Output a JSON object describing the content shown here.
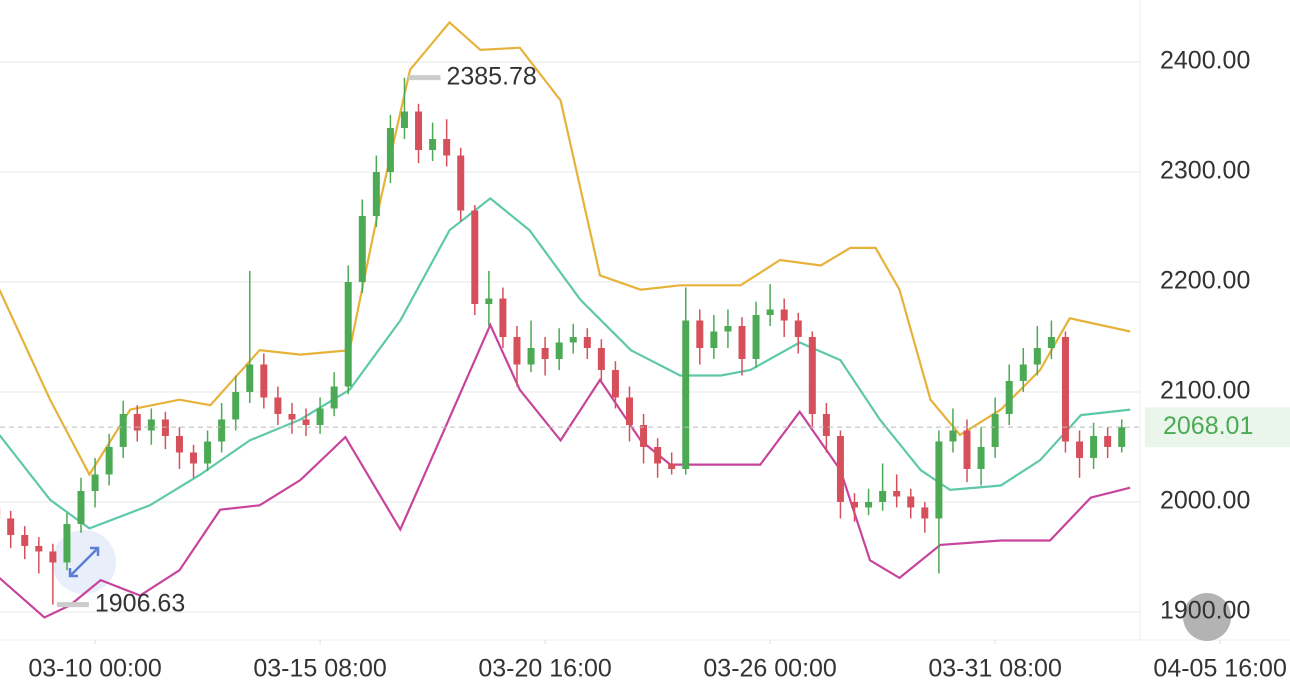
{
  "chart_data": {
    "type": "candlestick",
    "up_color": "#4caa55",
    "down_color": "#d6505c",
    "open": [
      1995,
      1985,
      1970,
      1960,
      1955,
      1945,
      1980,
      2010,
      2025,
      2050,
      2080,
      2065,
      2075,
      2060,
      2045,
      2035,
      2055,
      2075,
      2100,
      2125,
      2095,
      2080,
      2075,
      2070,
      2085,
      2105,
      2200,
      2260,
      2300,
      2340,
      2355,
      2320,
      2330,
      2315,
      2265,
      2180,
      2185,
      2150,
      2125,
      2140,
      2130,
      2145,
      2150,
      2140,
      2120,
      2095,
      2070,
      2050,
      2035,
      2030,
      2165,
      2140,
      2155,
      2160,
      2130,
      2170,
      2175,
      2165,
      2150,
      2080,
      2060,
      2000,
      1995,
      2000,
      2010,
      2005,
      1995,
      1985,
      2055,
      2065,
      2030,
      2050,
      2080,
      2110,
      2125,
      2140,
      2150,
      2055,
      2040,
      2060,
      2050
    ],
    "high": [
      2005,
      1992,
      1978,
      1968,
      1962,
      1990,
      2022,
      2040,
      2062,
      2092,
      2088,
      2085,
      2082,
      2068,
      2052,
      2065,
      2090,
      2115,
      2210,
      2135,
      2105,
      2090,
      2085,
      2095,
      2118,
      2215,
      2275,
      2315,
      2352,
      2385.78,
      2362,
      2345,
      2348,
      2322,
      2270,
      2210,
      2195,
      2160,
      2165,
      2150,
      2158,
      2162,
      2158,
      2148,
      2128,
      2105,
      2080,
      2058,
      2045,
      2195,
      2175,
      2170,
      2175,
      2168,
      2182,
      2198,
      2185,
      2172,
      2155,
      2090,
      2065,
      2008,
      2012,
      2035,
      2025,
      2012,
      2000,
      2065,
      2085,
      2075,
      2068,
      2095,
      2125,
      2140,
      2160,
      2165,
      2155,
      2065,
      2072,
      2068,
      2075
    ],
    "low": [
      1975,
      1958,
      1948,
      1935,
      1906.63,
      1938,
      1972,
      1995,
      2015,
      2040,
      2055,
      2052,
      2048,
      2030,
      2022,
      2028,
      2045,
      2065,
      2090,
      2085,
      2070,
      2062,
      2060,
      2062,
      2078,
      2098,
      2190,
      2250,
      2290,
      2330,
      2308,
      2310,
      2305,
      2255,
      2170,
      2160,
      2140,
      2105,
      2118,
      2115,
      2120,
      2135,
      2130,
      2108,
      2085,
      2055,
      2035,
      2022,
      2025,
      2025,
      2125,
      2130,
      2140,
      2115,
      2122,
      2160,
      2150,
      2135,
      2068,
      2045,
      1985,
      1982,
      1988,
      1992,
      1995,
      1985,
      1972,
      1935,
      2045,
      2018,
      2015,
      2040,
      2070,
      2100,
      2115,
      2130,
      2045,
      2022,
      2030,
      2040,
      2045
    ],
    "close": [
      1985,
      1970,
      1960,
      1955,
      1945,
      1980,
      2010,
      2025,
      2050,
      2080,
      2065,
      2075,
      2060,
      2045,
      2035,
      2055,
      2075,
      2100,
      2125,
      2095,
      2080,
      2075,
      2070,
      2085,
      2105,
      2200,
      2260,
      2300,
      2340,
      2355,
      2320,
      2330,
      2315,
      2265,
      2180,
      2185,
      2150,
      2125,
      2140,
      2130,
      2145,
      2150,
      2140,
      2120,
      2095,
      2070,
      2050,
      2035,
      2030,
      2165,
      2140,
      2155,
      2160,
      2130,
      2170,
      2175,
      2165,
      2150,
      2080,
      2060,
      2000,
      1995,
      2000,
      2010,
      2005,
      1995,
      1985,
      2055,
      2065,
      2030,
      2050,
      2080,
      2110,
      2125,
      2140,
      2150,
      2055,
      2040,
      2060,
      2050,
      2068.01
    ],
    "bands": [
      {
        "color": "#e6b23a",
        "x": [
          0.2,
          3.8,
          6.6,
          9.5,
          13.0,
          15.2,
          18.7,
          21.6,
          25.1,
          27.3,
          29.4,
          32.2,
          34.4,
          37.2,
          40.1,
          42.9,
          45.8,
          48.6,
          52.9,
          55.7,
          58.6,
          60.7,
          62.5,
          64.2,
          66.4,
          68.5,
          71.4,
          74.2,
          76.3,
          80.6
        ],
        "values": [
          2193,
          2093,
          2025,
          2084,
          2093,
          2088,
          2138,
          2134,
          2138,
          2275,
          2393,
          2436,
          2411,
          2413,
          2365,
          2206,
          2193,
          2197,
          2197,
          2220,
          2215,
          2231,
          2231,
          2193,
          2093,
          2061,
          2084,
          2120,
          2167,
          2155
        ]
      },
      {
        "color": "#5ec9aa",
        "x": [
          0.2,
          3.8,
          6.6,
          10.9,
          14.5,
          18.0,
          21.6,
          25.1,
          28.7,
          32.2,
          35.1,
          37.9,
          41.5,
          45.1,
          48.6,
          51.5,
          53.6,
          57.1,
          60.0,
          62.8,
          65.7,
          67.8,
          71.4,
          74.2,
          77.1,
          80.6
        ],
        "values": [
          2061,
          2002,
          1976,
          1997,
          2025,
          2056,
          2075,
          2102,
          2165,
          2247,
          2276,
          2247,
          2184,
          2138,
          2115,
          2115,
          2120,
          2145,
          2129,
          2075,
          2029,
          2011,
          2015,
          2038,
          2079,
          2084
        ]
      },
      {
        "color": "#c8449c",
        "x": [
          0.2,
          3.4,
          5.2,
          7.4,
          10.2,
          13.0,
          15.9,
          18.7,
          21.6,
          24.8,
          28.7,
          31.5,
          35.1,
          37.2,
          40.1,
          42.9,
          45.8,
          47.9,
          54.3,
          57.1,
          60.0,
          62.1,
          64.2,
          67.1,
          71.4,
          74.9,
          77.8,
          80.6
        ],
        "values": [
          1931,
          1895,
          1906,
          1929,
          1915,
          1938,
          1993,
          1997,
          2020,
          2059,
          1975,
          2056,
          2161,
          2102,
          2056,
          2111,
          2056,
          2034,
          2034,
          2082,
          2029,
          1947,
          1931,
          1961,
          1965,
          1965,
          2004,
          2013
        ]
      }
    ],
    "xlim": [
      0.24,
      81.3
    ],
    "xticks": [
      {
        "value": 7,
        "label": "03-10 00:00"
      },
      {
        "value": 23,
        "label": "03-15 08:00"
      },
      {
        "value": 39,
        "label": "03-20 16:00"
      },
      {
        "value": 55,
        "label": "03-26 00:00"
      },
      {
        "value": 71,
        "label": "03-31 08:00"
      },
      {
        "value": 87,
        "label": "04-05 16:00"
      }
    ],
    "ylim": [
      1874.5,
      2456.4
    ],
    "yticks": [
      {
        "value": 1900,
        "label": "1900.00"
      },
      {
        "value": 2000,
        "label": "2000.00"
      },
      {
        "value": 2100,
        "label": "2100.00"
      },
      {
        "value": 2200,
        "label": "2200.00"
      },
      {
        "value": 2300,
        "label": "2300.00"
      },
      {
        "value": 2400,
        "label": "2400.00"
      }
    ],
    "grid": true
  }
}
